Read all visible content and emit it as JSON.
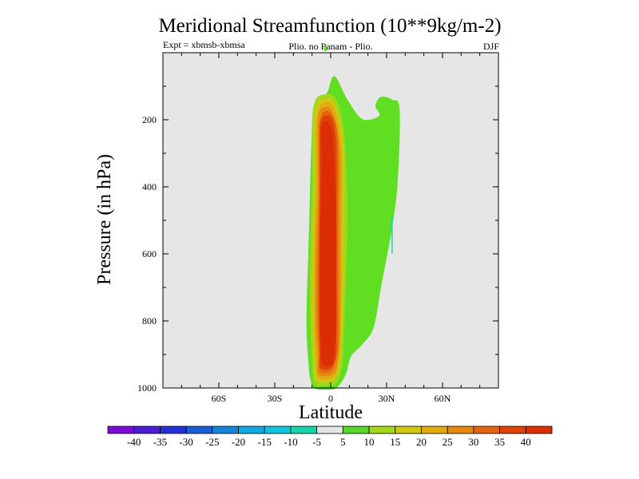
{
  "chart_data": {
    "type": "heatmap",
    "title": "Meridional Streamfunction (10**9kg/m-2)",
    "subtitle_left": "Expt = xbmsb-xbmsa",
    "subtitle_center": "Plio. no Panam - Plio.",
    "subtitle_right": "DJF",
    "xlabel": "Latitude",
    "ylabel": "Pressure (in hPa)",
    "xlim": [
      -90,
      90
    ],
    "ylim": [
      1000,
      0
    ],
    "x_ticks": [
      {
        "value": -60,
        "label": "60S"
      },
      {
        "value": -30,
        "label": "30S"
      },
      {
        "value": 0,
        "label": "0"
      },
      {
        "value": 30,
        "label": "30N"
      },
      {
        "value": 60,
        "label": "60N"
      }
    ],
    "y_ticks": [
      {
        "value": 200,
        "label": "200"
      },
      {
        "value": 400,
        "label": "400"
      },
      {
        "value": 600,
        "label": "600"
      },
      {
        "value": 800,
        "label": "800"
      },
      {
        "value": 1000,
        "label": "1000"
      }
    ],
    "background_color": "#e6e6e6",
    "colorbar": {
      "levels": [
        "-40",
        "-35",
        "-30",
        "-25",
        "-20",
        "-15",
        "-10",
        "-5",
        "5",
        "10",
        "15",
        "20",
        "25",
        "30",
        "35",
        "40"
      ],
      "colors": [
        "#7a0ad6",
        "#4b1bd6",
        "#2430d8",
        "#1a5ed8",
        "#1784dc",
        "#13a8e0",
        "#12c4dc",
        "#16d6a8",
        "#e6e6e6",
        "#58d62a",
        "#a4d81c",
        "#cfc812",
        "#e0ac10",
        "#e58a0e",
        "#e2640c",
        "#de420a",
        "#dc2e04"
      ]
    },
    "contours": [
      {
        "level": "5 to 10",
        "color": "#5fde22",
        "points": [
          [
            -9,
            1000
          ],
          [
            -3,
            1005
          ],
          [
            3,
            1000
          ],
          [
            8,
            960
          ],
          [
            11,
            905
          ],
          [
            17,
            870
          ],
          [
            23,
            820
          ],
          [
            27,
            700
          ],
          [
            33,
            520
          ],
          [
            36,
            380
          ],
          [
            37,
            170
          ],
          [
            33,
            140
          ],
          [
            27,
            132
          ],
          [
            24,
            158
          ],
          [
            26,
            188
          ],
          [
            17,
            198
          ],
          [
            9,
            140
          ],
          [
            2,
            70
          ],
          [
            -2,
            120
          ],
          [
            -8,
            155
          ],
          [
            -10,
            230
          ],
          [
            -11,
            400
          ],
          [
            -12,
            600
          ],
          [
            -13,
            800
          ],
          [
            -12,
            920
          ],
          [
            -11,
            970
          ]
        ]
      },
      {
        "level": "10 to 15",
        "color": "#9fd61e",
        "points": [
          [
            -9,
            985
          ],
          [
            -3,
            995
          ],
          [
            3,
            985
          ],
          [
            6,
            940
          ],
          [
            7,
            860
          ],
          [
            8,
            700
          ],
          [
            9,
            500
          ],
          [
            8,
            300
          ],
          [
            6,
            190
          ],
          [
            2,
            132
          ],
          [
            -3,
            124
          ],
          [
            -8,
            140
          ],
          [
            -10,
            210
          ],
          [
            -10,
            400
          ],
          [
            -11,
            600
          ],
          [
            -11,
            800
          ],
          [
            -10,
            920
          ]
        ]
      },
      {
        "level": "15 to 20",
        "color": "#cfc814",
        "points": [
          [
            -8,
            975
          ],
          [
            -3,
            985
          ],
          [
            2,
            975
          ],
          [
            5,
            930
          ],
          [
            6,
            850
          ],
          [
            7,
            700
          ],
          [
            7,
            500
          ],
          [
            7,
            300
          ],
          [
            5,
            200
          ],
          [
            1,
            142
          ],
          [
            -3,
            136
          ],
          [
            -7,
            150
          ],
          [
            -9,
            215
          ],
          [
            -9,
            400
          ],
          [
            -10,
            600
          ],
          [
            -10,
            800
          ],
          [
            -9,
            915
          ]
        ]
      },
      {
        "level": "20 to 25",
        "color": "#e0ac10",
        "points": [
          [
            -7,
            965
          ],
          [
            -3,
            975
          ],
          [
            2,
            965
          ],
          [
            4,
            925
          ],
          [
            5,
            850
          ],
          [
            6,
            700
          ],
          [
            6,
            500
          ],
          [
            6,
            300
          ],
          [
            4,
            210
          ],
          [
            1,
            155
          ],
          [
            -3,
            148
          ],
          [
            -6,
            162
          ],
          [
            -8,
            220
          ],
          [
            -8,
            400
          ],
          [
            -9,
            600
          ],
          [
            -9,
            800
          ],
          [
            -8,
            910
          ]
        ]
      },
      {
        "level": "25 to 30",
        "color": "#e58a0e",
        "points": [
          [
            -7,
            955
          ],
          [
            -3,
            965
          ],
          [
            2,
            955
          ],
          [
            4,
            920
          ],
          [
            5,
            850
          ],
          [
            5,
            700
          ],
          [
            5,
            500
          ],
          [
            5,
            300
          ],
          [
            3,
            215
          ],
          [
            0,
            168
          ],
          [
            -3,
            162
          ],
          [
            -6,
            175
          ],
          [
            -7,
            225
          ],
          [
            -7,
            400
          ],
          [
            -8,
            600
          ],
          [
            -8,
            800
          ],
          [
            -7,
            905
          ]
        ]
      },
      {
        "level": "30 to 35",
        "color": "#e2640c",
        "points": [
          [
            -6,
            945
          ],
          [
            -3,
            955
          ],
          [
            1,
            945
          ],
          [
            3,
            910
          ],
          [
            4,
            850
          ],
          [
            4,
            700
          ],
          [
            4,
            500
          ],
          [
            4,
            300
          ],
          [
            3,
            220
          ],
          [
            0,
            180
          ],
          [
            -3,
            175
          ],
          [
            -5,
            188
          ],
          [
            -6,
            230
          ],
          [
            -6,
            400
          ],
          [
            -7,
            600
          ],
          [
            -7,
            800
          ],
          [
            -6,
            900
          ]
        ]
      },
      {
        "level": "35 to 40",
        "color": "#de420a",
        "points": [
          [
            -6,
            935
          ],
          [
            -3,
            945
          ],
          [
            1,
            935
          ],
          [
            3,
            900
          ],
          [
            3,
            850
          ],
          [
            3,
            700
          ],
          [
            3,
            500
          ],
          [
            3,
            300
          ],
          [
            2,
            228
          ],
          [
            0,
            192
          ],
          [
            -3,
            188
          ],
          [
            -5,
            198
          ],
          [
            -6,
            235
          ],
          [
            -6,
            400
          ],
          [
            -6,
            600
          ],
          [
            -6,
            800
          ],
          [
            -6,
            895
          ]
        ]
      },
      {
        "level": "> 40",
        "color": "#dc2e04",
        "points": [
          [
            -5,
            920
          ],
          [
            -2,
            935
          ],
          [
            1,
            925
          ],
          [
            2,
            890
          ],
          [
            3,
            820
          ],
          [
            3,
            700
          ],
          [
            3,
            500
          ],
          [
            2,
            320
          ],
          [
            1,
            240
          ],
          [
            -1,
            210
          ],
          [
            -3,
            205
          ],
          [
            -5,
            220
          ],
          [
            -5,
            260
          ],
          [
            -5,
            400
          ],
          [
            -6,
            600
          ],
          [
            -6,
            800
          ],
          [
            -5,
            880
          ]
        ]
      },
      {
        "level": "-10 to -5",
        "color": "#16d6a8",
        "points": [
          [
            32.6,
            490
          ],
          [
            33.2,
            490
          ],
          [
            33.3,
            600
          ],
          [
            32.7,
            600
          ]
        ]
      },
      {
        "level": "5 to 10",
        "color": "#5fde22",
        "points": [
          [
            -3.5,
            -20
          ],
          [
            -2.2,
            -20
          ],
          [
            -2.2,
            -5
          ],
          [
            -3.5,
            -5
          ]
        ]
      }
    ]
  }
}
